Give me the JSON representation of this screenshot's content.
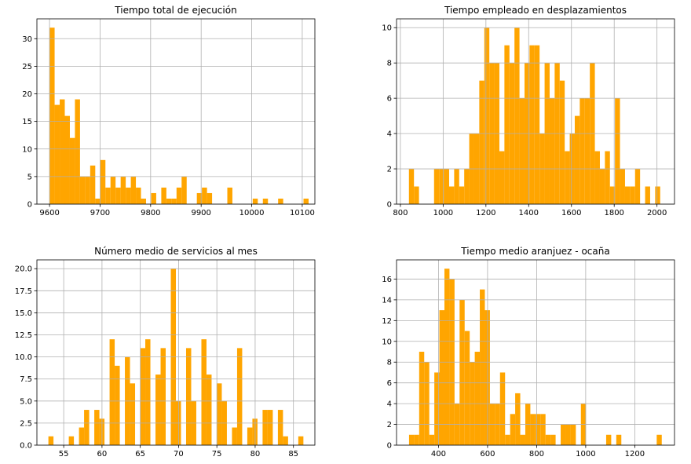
{
  "chart_data": [
    {
      "type": "bar",
      "title": "Tiempo total de ejecución",
      "xlabel": "",
      "ylabel": "",
      "bin_width": 10.05,
      "bins_left": [
        9600.0,
        9610.05,
        9620.1,
        9630.15,
        9640.2,
        9650.25,
        9660.3,
        9670.35,
        9680.4,
        9690.45,
        9700.5,
        9710.55,
        9720.6,
        9730.65,
        9740.7,
        9750.75,
        9760.8,
        9770.85,
        9780.9,
        9790.95,
        9801.0,
        9811.05,
        9821.1,
        9831.15,
        9841.2,
        9851.25,
        9861.3,
        9871.35,
        9881.4,
        9891.45,
        9901.5,
        9911.55,
        9921.6,
        9931.65,
        9941.7,
        9951.75,
        9961.8,
        9971.85,
        9981.9,
        9991.95,
        10002.0,
        10012.05,
        10022.1,
        10032.15,
        10042.2,
        10052.25,
        10062.3,
        10072.35,
        10082.4,
        10092.45,
        10102.5
      ],
      "values": [
        32,
        18,
        19,
        16,
        12,
        19,
        5,
        5,
        7,
        1,
        8,
        3,
        5,
        3,
        5,
        3,
        5,
        3,
        1,
        0,
        2,
        0,
        3,
        1,
        1,
        3,
        5,
        0,
        0,
        2,
        3,
        2,
        0,
        0,
        0,
        3,
        0,
        0,
        0,
        0,
        1,
        0,
        1,
        0,
        0,
        1,
        0,
        0,
        0,
        0,
        1
      ],
      "xlim": [
        9575,
        10125
      ],
      "ylim": [
        0,
        33.6
      ],
      "xticks": [
        9600,
        9700,
        9800,
        9900,
        10000,
        10100
      ],
      "xtick_labels": [
        "9600",
        "9700",
        "9800",
        "9900",
        "10000",
        "10100"
      ],
      "yticks": [
        0,
        5,
        10,
        15,
        20,
        25,
        30
      ],
      "ytick_labels": [
        "0",
        "5",
        "10",
        "15",
        "20",
        "25",
        "30"
      ],
      "grid": true,
      "color": "#ffa500"
    },
    {
      "type": "bar",
      "title": "Tiempo empleado en desplazamientos",
      "xlabel": "",
      "ylabel": "",
      "bin_width": 23.5,
      "bins_left": [
        840.0,
        863.5,
        887.0,
        910.5,
        934.0,
        957.5,
        981.0,
        1004.5,
        1028.0,
        1051.5,
        1075.0,
        1098.5,
        1122.0,
        1145.5,
        1169.0,
        1192.5,
        1216.0,
        1239.5,
        1263.0,
        1286.5,
        1310.0,
        1333.5,
        1357.0,
        1380.5,
        1404.0,
        1427.5,
        1451.0,
        1474.5,
        1498.0,
        1521.5,
        1545.0,
        1568.5,
        1592.0,
        1615.5,
        1639.0,
        1662.5,
        1686.0,
        1709.5,
        1733.0,
        1756.5,
        1780.0,
        1803.5,
        1827.0,
        1850.5,
        1874.0,
        1897.5,
        1921.0,
        1944.5,
        1968.0,
        1991.5
      ],
      "values": [
        2,
        1,
        0,
        0,
        0,
        2,
        2,
        2,
        1,
        2,
        1,
        2,
        4,
        4,
        7,
        10,
        8,
        8,
        3,
        9,
        8,
        10,
        6,
        8,
        9,
        9,
        4,
        8,
        6,
        8,
        7,
        3,
        4,
        5,
        6,
        6,
        8,
        3,
        2,
        3,
        1,
        6,
        2,
        1,
        1,
        2,
        0,
        1,
        0,
        1
      ],
      "xlim": [
        782,
        2082
      ],
      "ylim": [
        0,
        10.5
      ],
      "xticks": [
        800,
        1000,
        1200,
        1400,
        1600,
        1800,
        2000
      ],
      "xtick_labels": [
        "800",
        "1000",
        "1200",
        "1400",
        "1600",
        "1800",
        "2000"
      ],
      "yticks": [
        0,
        2,
        4,
        6,
        8,
        10
      ],
      "ytick_labels": [
        "0",
        "2",
        "4",
        "6",
        "8",
        "10"
      ],
      "grid": true,
      "color": "#ffa500"
    },
    {
      "type": "bar",
      "title": "Número medio de servicios al mes",
      "xlabel": "",
      "ylabel": "",
      "bin_width": 0.666,
      "bins_left": [
        53.0,
        53.666,
        54.332,
        54.998,
        55.664,
        56.33,
        56.996,
        57.662,
        58.328,
        58.994,
        59.66,
        60.326,
        60.992,
        61.658,
        62.324,
        62.99,
        63.656,
        64.322,
        64.988,
        65.654,
        66.32,
        66.986,
        67.652,
        68.318,
        68.984,
        69.65,
        70.316,
        70.982,
        71.648,
        72.314,
        72.98,
        73.646,
        74.312,
        74.978,
        75.644,
        76.31,
        76.976,
        77.642,
        78.308,
        78.974,
        79.64,
        80.306,
        80.972,
        81.638,
        82.304,
        82.97,
        83.636,
        84.302,
        84.968,
        85.634
      ],
      "values": [
        1,
        0,
        0,
        0,
        1,
        0,
        2,
        4,
        0,
        4,
        3,
        0,
        12,
        9,
        0,
        10,
        7,
        0,
        11,
        12,
        0,
        8,
        11,
        0,
        20,
        5,
        0,
        11,
        5,
        0,
        12,
        8,
        0,
        7,
        5,
        0,
        2,
        11,
        0,
        2,
        3,
        0,
        4,
        4,
        0,
        4,
        1,
        0,
        0,
        1
      ],
      "xlim": [
        51.5,
        87.8
      ],
      "ylim": [
        0,
        21.0
      ],
      "xticks": [
        55,
        60,
        65,
        70,
        75,
        80,
        85
      ],
      "xtick_labels": [
        "55",
        "60",
        "65",
        "70",
        "75",
        "80",
        "85"
      ],
      "yticks": [
        0,
        2.5,
        5,
        7.5,
        10,
        12.5,
        15,
        17.5,
        20
      ],
      "ytick_labels": [
        "0.0",
        "2.5",
        "5.0",
        "7.5",
        "10.0",
        "12.5",
        "15.0",
        "17.5",
        "20.0"
      ],
      "grid": true,
      "color": "#ffa500"
    },
    {
      "type": "bar",
      "title": "Tiempo medio aranjuez - ocaña",
      "xlabel": "",
      "ylabel": "",
      "bin_width": 20.6,
      "bins_left": [
        280.0,
        300.6,
        321.2,
        341.8,
        362.4,
        383.0,
        403.6,
        424.2,
        444.8,
        465.4,
        486.0,
        506.6,
        527.2,
        547.8,
        568.4,
        589.0,
        609.6,
        630.2,
        650.8,
        671.4,
        692.0,
        712.6,
        733.2,
        753.8,
        774.4,
        795.0,
        815.6,
        836.2,
        856.8,
        877.4,
        898.0,
        918.6,
        939.2,
        959.8,
        980.4,
        1001.0,
        1021.6,
        1042.2,
        1062.8,
        1083.4,
        1104.0,
        1124.6,
        1145.2,
        1165.8,
        1186.4,
        1207.0,
        1227.6,
        1248.2,
        1268.8,
        1289.4
      ],
      "values": [
        1,
        1,
        9,
        8,
        1,
        7,
        13,
        17,
        16,
        4,
        14,
        11,
        8,
        9,
        15,
        13,
        4,
        4,
        7,
        1,
        3,
        5,
        1,
        4,
        3,
        3,
        3,
        1,
        1,
        0,
        2,
        2,
        2,
        0,
        4,
        0,
        0,
        0,
        0,
        1,
        0,
        1,
        0,
        0,
        0,
        0,
        0,
        0,
        0,
        1
      ],
      "xlim": [
        229,
        1362
      ],
      "ylim": [
        0,
        17.85
      ],
      "xticks": [
        400,
        600,
        800,
        1000,
        1200
      ],
      "xtick_labels": [
        "400",
        "600",
        "800",
        "1000",
        "1200"
      ],
      "yticks": [
        0,
        2,
        4,
        6,
        8,
        10,
        12,
        14,
        16
      ],
      "ytick_labels": [
        "0",
        "2",
        "4",
        "6",
        "8",
        "10",
        "12",
        "14",
        "16"
      ],
      "grid": true,
      "color": "#ffa500"
    }
  ]
}
